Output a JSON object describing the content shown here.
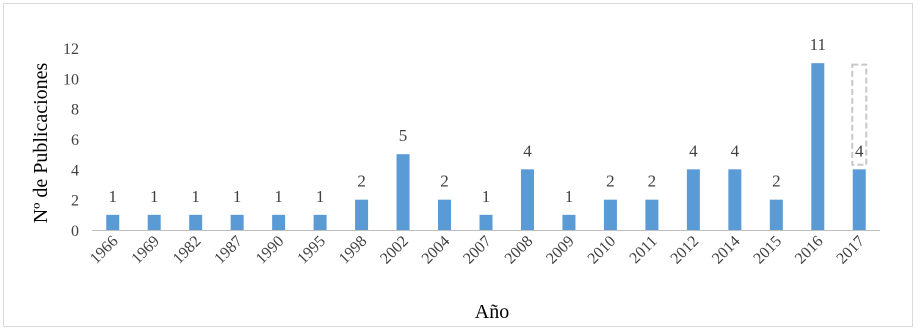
{
  "chart_data": {
    "type": "bar",
    "categories": [
      "1966",
      "1969",
      "1982",
      "1987",
      "1990",
      "1995",
      "1998",
      "2002",
      "2004",
      "2007",
      "2008",
      "2009",
      "2010",
      "2011",
      "2012",
      "2014",
      "2015",
      "2016",
      "2017"
    ],
    "values": [
      1,
      1,
      1,
      1,
      1,
      1,
      2,
      5,
      2,
      1,
      4,
      1,
      2,
      2,
      4,
      4,
      2,
      11,
      4
    ],
    "data_labels": [
      "1",
      "1",
      "1",
      "1",
      "1",
      "1",
      "2",
      "5",
      "2",
      "1",
      "4",
      "1",
      "2",
      "2",
      "4",
      "4",
      "2",
      "11",
      "4"
    ],
    "xlabel": "Año",
    "ylabel": "Nº de Publicaciones",
    "ylim": [
      0,
      12
    ],
    "yticks": [
      "0",
      "2",
      "4",
      "6",
      "8",
      "10",
      "12"
    ],
    "grid": false,
    "legend": "none",
    "bar_color": "#5b9bd5",
    "highlight_box_color": "#c8c8c8"
  }
}
